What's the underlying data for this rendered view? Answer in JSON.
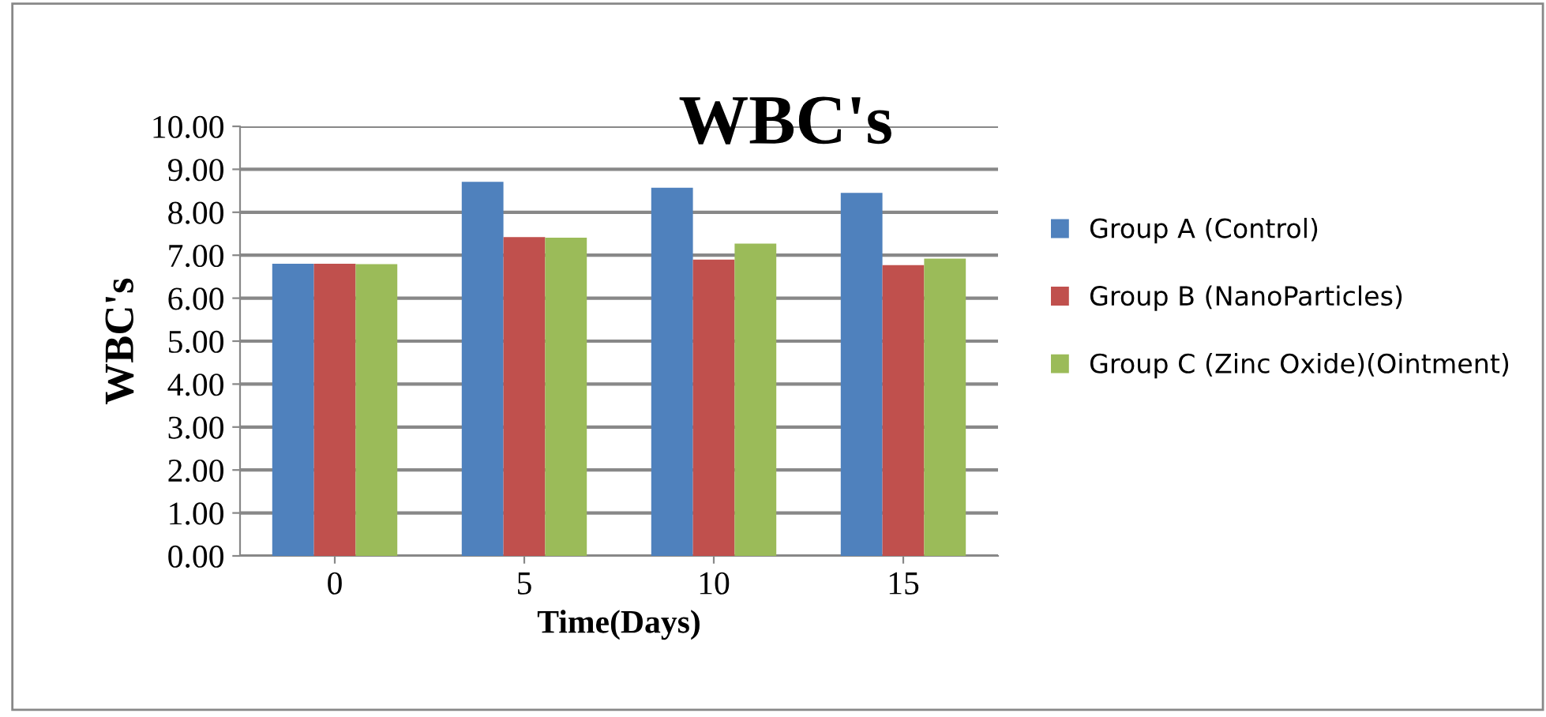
{
  "chart_data": {
    "type": "bar",
    "title": "WBC's",
    "xlabel": "Time(Days)",
    "ylabel": "WBC's",
    "categories": [
      "0",
      "5",
      "10",
      "15"
    ],
    "series": [
      {
        "name": "Group A (Control)",
        "color": "#4f81bd",
        "values": [
          6.8,
          8.71,
          8.57,
          8.45
        ]
      },
      {
        "name": "Group B (NanoParticles)",
        "color": "#c0504d",
        "values": [
          6.8,
          7.42,
          6.9,
          6.77
        ]
      },
      {
        "name": "Group C (Zinc Oxide)(Ointment)",
        "color": "#9bbb59",
        "values": [
          6.79,
          7.41,
          7.27,
          6.92
        ]
      }
    ],
    "ylim": [
      0,
      10
    ],
    "yticks": [
      {
        "value": 0,
        "label": "0.00"
      },
      {
        "value": 1,
        "label": "1.00"
      },
      {
        "value": 2,
        "label": "2.00"
      },
      {
        "value": 3,
        "label": "3.00"
      },
      {
        "value": 4,
        "label": "4.00"
      },
      {
        "value": 5,
        "label": "5.00"
      },
      {
        "value": 6,
        "label": "6.00"
      },
      {
        "value": 7,
        "label": "7.00"
      },
      {
        "value": 8,
        "label": "8.00"
      },
      {
        "value": 9,
        "label": "9.00"
      },
      {
        "value": 10,
        "label": "10.00"
      }
    ],
    "grid": "y",
    "legend": "right"
  }
}
